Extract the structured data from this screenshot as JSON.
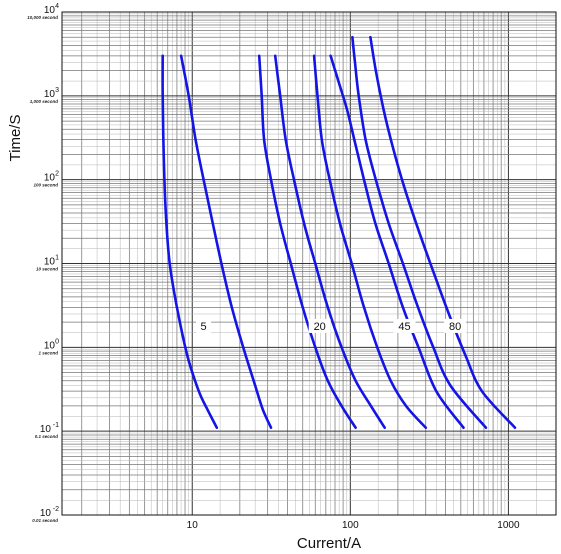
{
  "chart_data": {
    "type": "line",
    "title": "",
    "xlabel": "Current/A",
    "ylabel": "Time/S",
    "x_scale": "log",
    "y_scale": "log",
    "xlim": [
      1.5,
      2000
    ],
    "ylim": [
      0.01,
      10000
    ],
    "grid": true,
    "x_ticks": [
      {
        "value": 10,
        "label": "10"
      },
      {
        "value": 100,
        "label": "100"
      },
      {
        "value": 1000,
        "label": "1000"
      }
    ],
    "y_ticks": [
      {
        "value": 10000,
        "base": "10",
        "exp": "4",
        "sub": "10,000 second"
      },
      {
        "value": 1000,
        "base": "10",
        "exp": "3",
        "sub": "1,000 second"
      },
      {
        "value": 100,
        "base": "10",
        "exp": "2",
        "sub": "100 second"
      },
      {
        "value": 10,
        "base": "10",
        "exp": "1",
        "sub": "10 second"
      },
      {
        "value": 1,
        "base": "10",
        "exp": "0",
        "sub": "1 second"
      },
      {
        "value": 0.1,
        "base": "10",
        "exp": "-1",
        "sub": "0.1 second"
      },
      {
        "value": 0.01,
        "base": "10",
        "exp": "-2",
        "sub": "0.01 second"
      }
    ],
    "line_color": "#1414e6",
    "curve_labels": [
      {
        "text": "5",
        "x": 11.8,
        "y": 1.8
      },
      {
        "text": "20",
        "x": 64,
        "y": 1.8
      },
      {
        "text": "45",
        "x": 220,
        "y": 1.8
      },
      {
        "text": "80",
        "x": 460,
        "y": 1.8
      }
    ],
    "series": [
      {
        "x": [
          6.5,
          6.5,
          6.6,
          6.8,
          7.2,
          8.0,
          9.3,
          11.0,
          12.5,
          14.3
        ],
        "y": [
          3000,
          1000,
          200,
          40,
          10,
          3,
          0.8,
          0.3,
          0.18,
          0.11
        ]
      },
      {
        "x": [
          8.5,
          9.5,
          10.5,
          11.8,
          13.5,
          15.3,
          17.8,
          21.0,
          25.0,
          28.0,
          31.5
        ],
        "y": [
          3000,
          1000,
          300,
          100,
          30,
          10,
          3,
          1,
          0.35,
          0.18,
          0.11
        ]
      },
      {
        "x": [
          26.5,
          27.5,
          28.5,
          31.5,
          36,
          42,
          50,
          60,
          72,
          88,
          108
        ],
        "y": [
          3000,
          1000,
          300,
          100,
          30,
          10,
          3,
          1,
          0.4,
          0.2,
          0.11
        ]
      },
      {
        "x": [
          33.5,
          36,
          39,
          44,
          51,
          60,
          72,
          88,
          108,
          135,
          165
        ],
        "y": [
          3000,
          1000,
          300,
          100,
          30,
          10,
          3,
          1,
          0.4,
          0.2,
          0.11
        ]
      },
      {
        "x": [
          59,
          62,
          66,
          74,
          86,
          102,
          122,
          148,
          180,
          225,
          300
        ],
        "y": [
          3000,
          1000,
          300,
          100,
          30,
          10,
          3,
          1,
          0.4,
          0.2,
          0.11
        ]
      },
      {
        "x": [
          75,
          84,
          95,
          106,
          122,
          144,
          175,
          215,
          270,
          350,
          520
        ],
        "y": [
          3000,
          1500,
          700,
          300,
          100,
          30,
          10,
          3,
          1,
          0.3,
          0.11
        ]
      },
      {
        "x": [
          103,
          107,
          113,
          125,
          145,
          175,
          215,
          268,
          335,
          430,
          720
        ],
        "y": [
          5000,
          2500,
          1000,
          300,
          100,
          30,
          10,
          3,
          1,
          0.35,
          0.11
        ]
      },
      {
        "x": [
          134,
          145,
          162,
          185,
          220,
          270,
          335,
          420,
          535,
          680,
          1100
        ],
        "y": [
          5000,
          2000,
          700,
          250,
          80,
          25,
          8,
          2.5,
          0.8,
          0.3,
          0.11
        ]
      }
    ]
  }
}
